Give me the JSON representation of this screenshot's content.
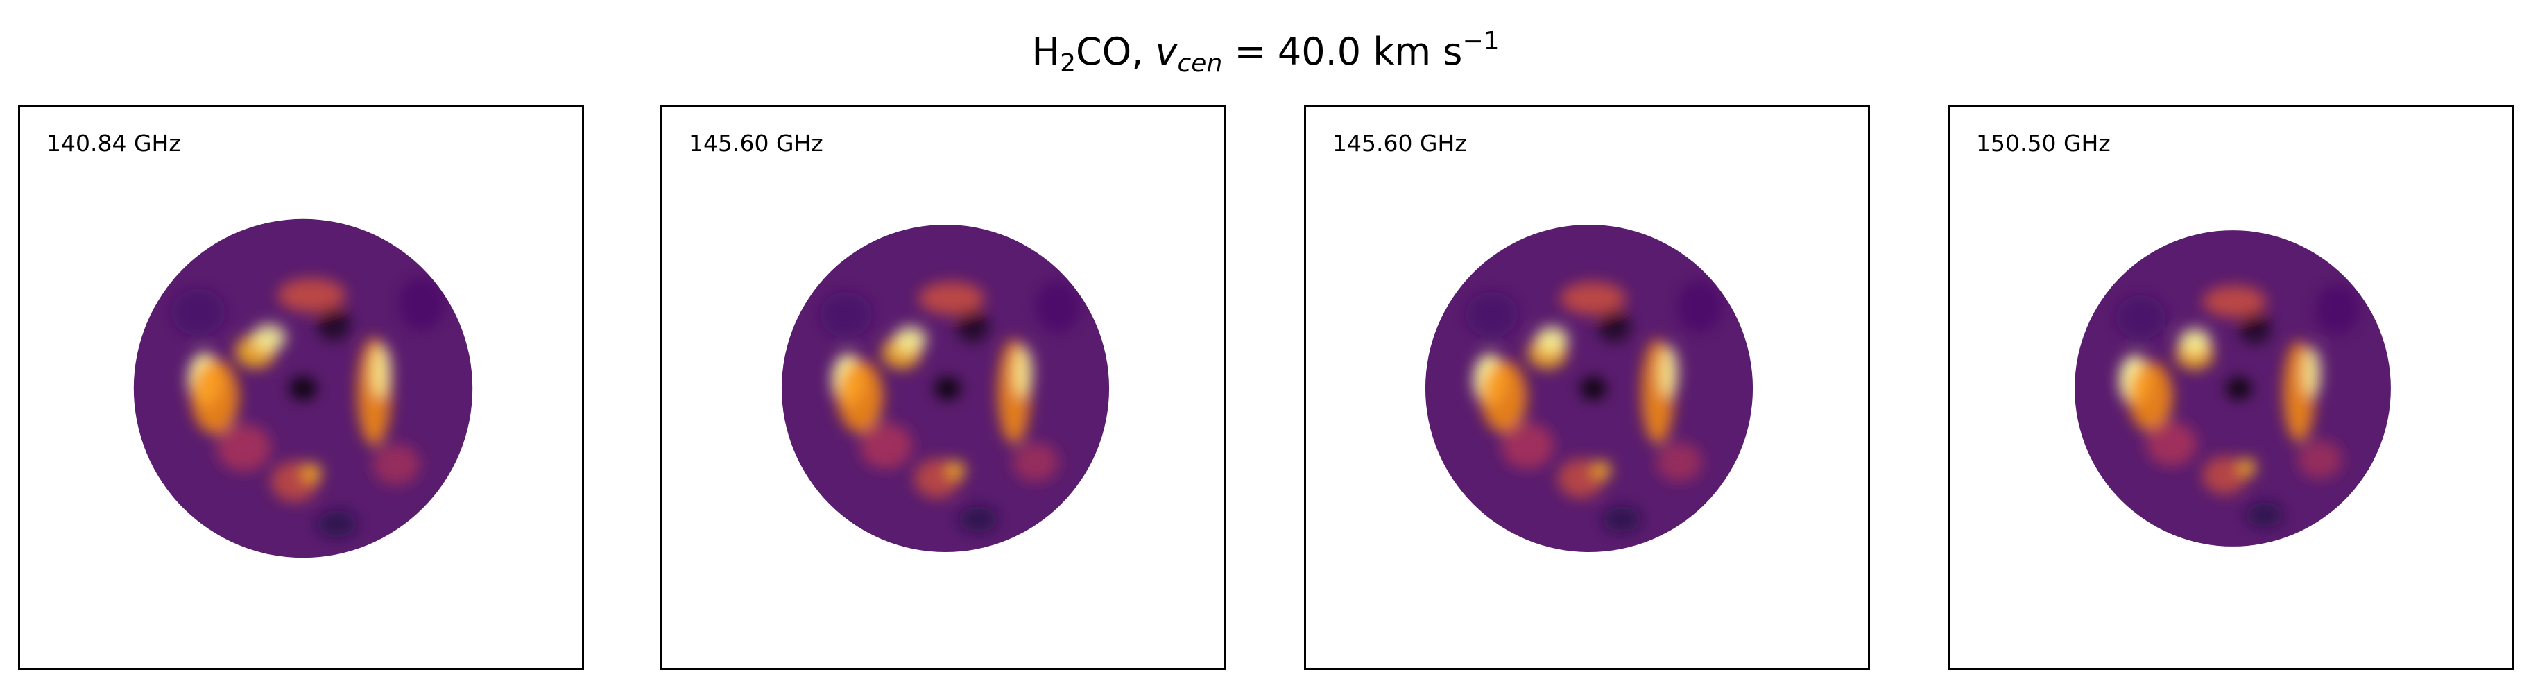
{
  "title": {
    "molecule": "H",
    "subscript": "2",
    "molecule_rest": "CO, ",
    "var": "v",
    "var_sub": "cen",
    "equals_value": " =  40.0 km s",
    "exponent": "−1"
  },
  "colormap": "inferno",
  "colors": {
    "frame": "#000000",
    "background": "#ffffff",
    "disk_base": "#5a1c6e"
  },
  "chart_data": [
    {
      "type": "heatmap",
      "annotation": "140.84 GHz",
      "axes_visible": false,
      "image": "circular-masked intensity map, inferno colormap",
      "disk_radius_fraction": 0.3
    },
    {
      "type": "heatmap",
      "annotation": "145.60 GHz",
      "axes_visible": false,
      "image": "circular-masked intensity map, inferno colormap",
      "disk_radius_fraction": 0.29
    },
    {
      "type": "heatmap",
      "annotation": "145.60 GHz",
      "axes_visible": false,
      "image": "circular-masked intensity map, inferno colormap",
      "disk_radius_fraction": 0.29
    },
    {
      "type": "heatmap",
      "annotation": "150.50 GHz",
      "axes_visible": false,
      "image": "circular-masked intensity map, inferno colormap",
      "disk_radius_fraction": 0.28
    }
  ]
}
